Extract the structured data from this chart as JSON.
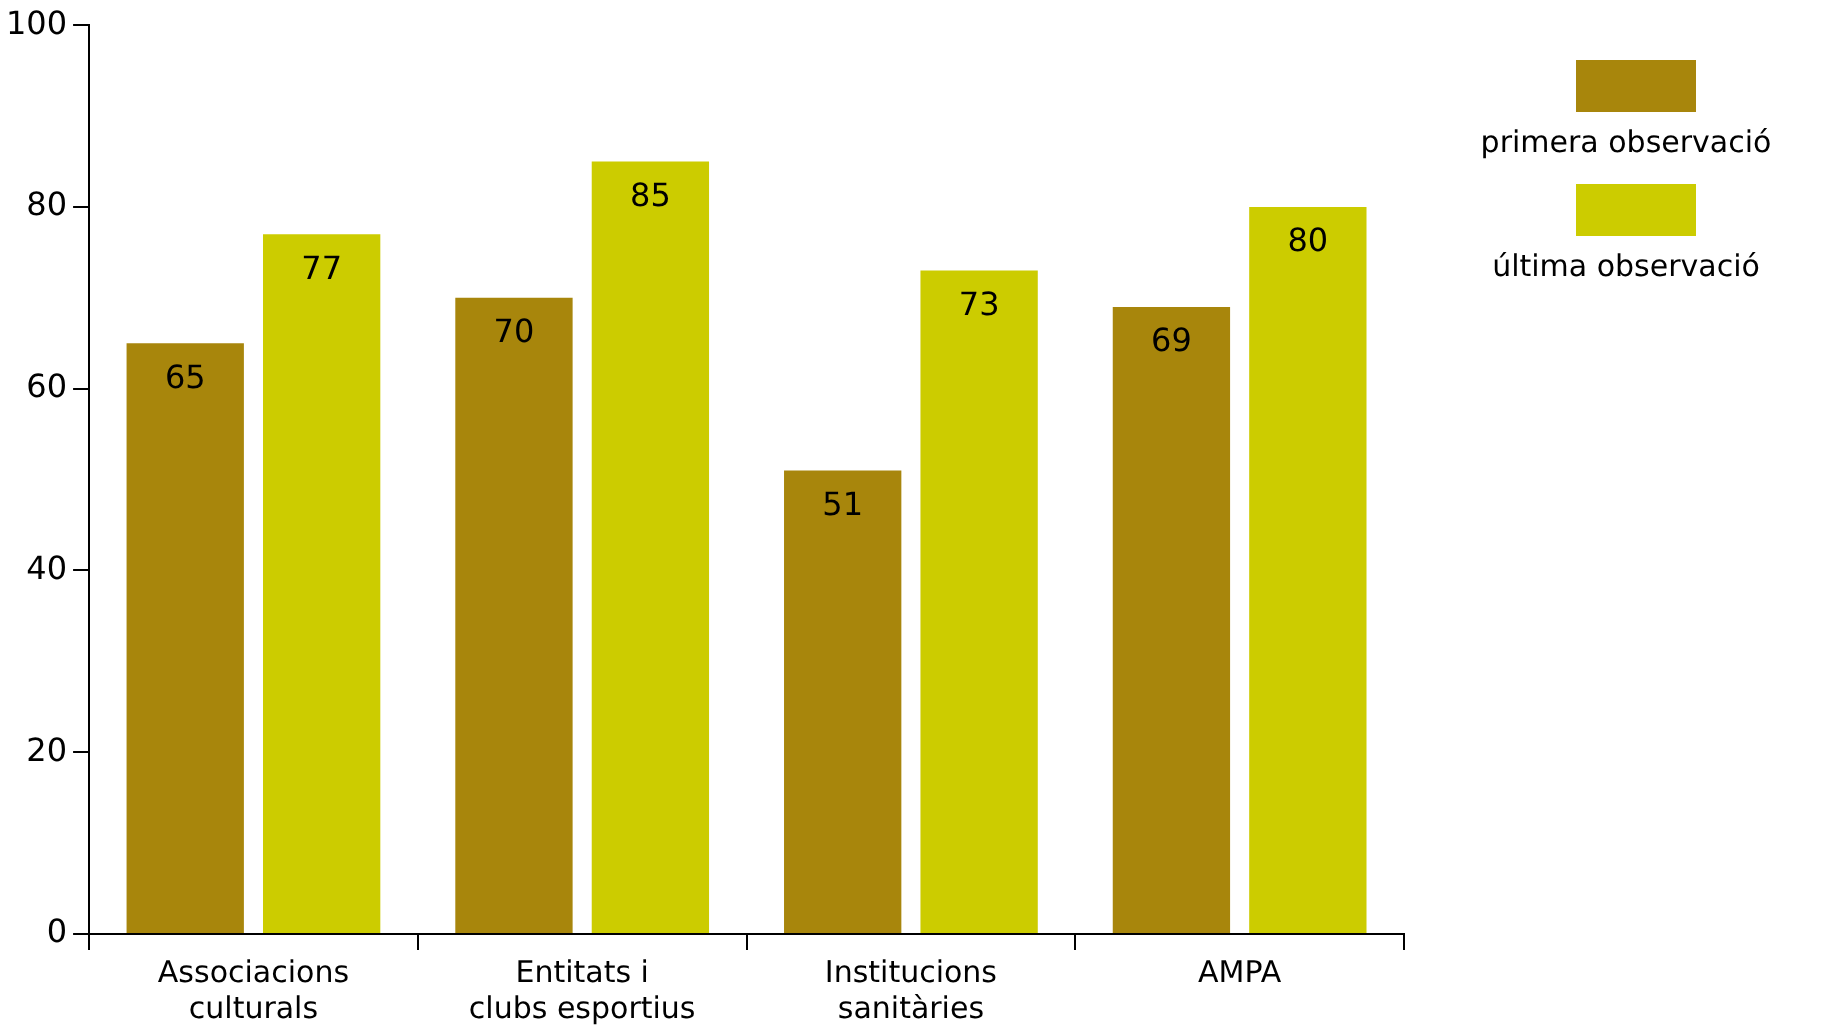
{
  "chart_data": {
    "type": "bar",
    "categories": [
      "Associacions culturals",
      "Entitats i clubs esportius",
      "Institucions sanitàries",
      "AMPA"
    ],
    "series": [
      {
        "name": "primera observació",
        "color": "#a8860c",
        "values": [
          65,
          70,
          51,
          69
        ]
      },
      {
        "name": "última observació",
        "color": "#cccc00",
        "values": [
          77,
          85,
          73,
          80
        ]
      }
    ],
    "data_labels": true,
    "ylim": [
      0,
      100
    ],
    "yticks": [
      0,
      20,
      40,
      60,
      80,
      100
    ],
    "grid": false,
    "legend": "top right"
  }
}
